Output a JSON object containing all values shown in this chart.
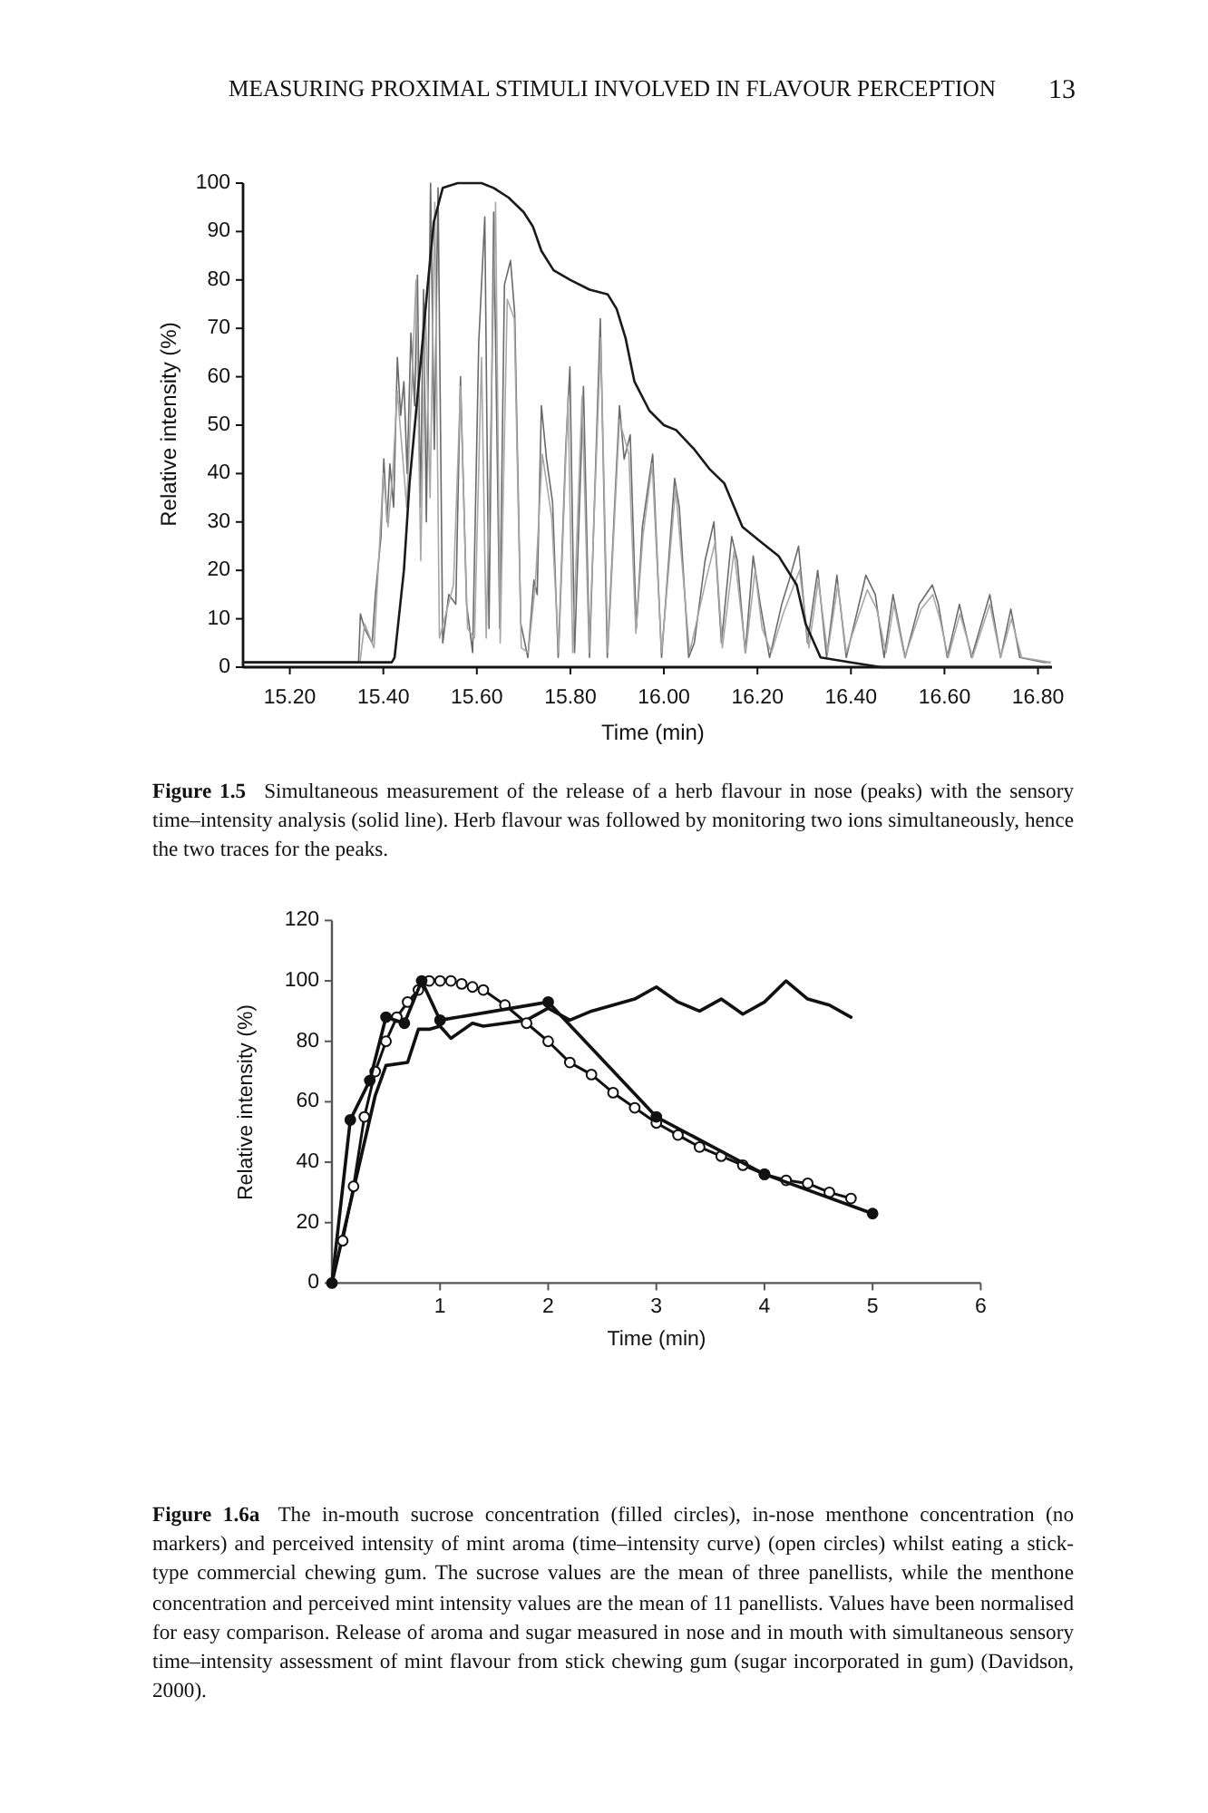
{
  "chart_data": [
    {
      "type": "line",
      "annotations": [
        "MEASURING PROXIMAL STIMULI INVOLVED IN FLAVOUR PERCEPTION",
        "13",
        "Figure 1.5 Simultaneous measurement of the release of a herb flavour in nose (peaks) with the sensory time–intensity analysis (solid line). Herb flavour was followed by monitoring two ions simultaneously, hence the two traces for the peaks."
      ],
      "xlabel": "Time (min)",
      "ylabel": "Relative intensity (%)",
      "xlim": [
        15.1,
        16.83
      ],
      "xticks": [
        {
          "value": 15.2,
          "label": "15.20"
        },
        {
          "value": 15.4,
          "label": "15.40"
        },
        {
          "value": 15.6,
          "label": "15.60"
        },
        {
          "value": 15.8,
          "label": "15.80"
        },
        {
          "value": 16.0,
          "label": "16.00"
        },
        {
          "value": 16.2,
          "label": "16.20"
        },
        {
          "value": 16.4,
          "label": "16.40"
        },
        {
          "value": 16.6,
          "label": "16.60"
        },
        {
          "value": 16.8,
          "label": "16.80"
        }
      ],
      "ylim": [
        0,
        100
      ],
      "yticks": [
        0,
        10,
        20,
        30,
        40,
        50,
        60,
        70,
        80,
        90,
        100
      ],
      "series": [
        {
          "color": "#6a6a6a",
          "x": [
            15.1,
            15.347,
            15.351,
            15.36,
            15.376,
            15.383,
            15.395,
            15.401,
            15.408,
            15.414,
            15.422,
            15.43,
            15.437,
            15.444,
            15.451,
            15.459,
            15.467,
            15.473,
            15.479,
            15.486,
            15.492,
            15.501,
            15.509,
            15.517,
            15.527,
            15.54,
            15.555,
            15.565,
            15.578,
            15.591,
            15.604,
            15.617,
            15.626,
            15.636,
            15.649,
            15.659,
            15.672,
            15.681,
            15.694,
            15.709,
            15.722,
            15.729,
            15.738,
            15.749,
            15.762,
            15.774,
            15.79,
            15.799,
            15.809,
            15.828,
            15.841,
            15.864,
            15.879,
            15.905,
            15.915,
            15.928,
            15.941,
            15.954,
            15.976,
            15.995,
            16.023,
            16.033,
            16.053,
            16.065,
            16.088,
            16.107,
            16.123,
            16.145,
            16.157,
            16.174,
            16.191,
            16.206,
            16.226,
            16.252,
            16.268,
            16.288,
            16.307,
            16.329,
            16.348,
            16.37,
            16.39,
            16.432,
            16.452,
            16.471,
            16.49,
            16.516,
            16.546,
            16.574,
            16.587,
            16.606,
            16.632,
            16.658,
            16.697,
            16.72,
            16.742,
            16.761,
            16.813,
            16.826
          ],
          "values": [
            1,
            1,
            11,
            8,
            5,
            15,
            27,
            43,
            30,
            42,
            33,
            64,
            52,
            59,
            40,
            69,
            54,
            81,
            33,
            78,
            30,
            100,
            45,
            99,
            5,
            15,
            13,
            60,
            13,
            3,
            67,
            93,
            8,
            94,
            8,
            79,
            84,
            73,
            9,
            2,
            18,
            15,
            54,
            43,
            34,
            2,
            45,
            62,
            3,
            58,
            2,
            72,
            2,
            54,
            43,
            48,
            8,
            29,
            44,
            2,
            39,
            33,
            2,
            5,
            22,
            30,
            5,
            27,
            22,
            3,
            23,
            13,
            2,
            13,
            18,
            25,
            5,
            20,
            2,
            19,
            2,
            19,
            15,
            2,
            15,
            2,
            13,
            17,
            13,
            2,
            13,
            2,
            15,
            2,
            12,
            2,
            1,
            1
          ]
        },
        {
          "color": "#a8a8a8",
          "x": [
            15.1,
            15.35,
            15.36,
            15.38,
            15.4,
            15.41,
            15.42,
            15.43,
            15.45,
            15.47,
            15.48,
            15.49,
            15.5,
            15.51,
            15.52,
            15.55,
            15.565,
            15.58,
            15.595,
            15.61,
            15.62,
            15.64,
            15.65,
            15.665,
            15.68,
            15.695,
            15.71,
            15.725,
            15.74,
            15.76,
            15.775,
            15.795,
            15.805,
            15.825,
            15.84,
            15.865,
            15.88,
            15.905,
            15.925,
            15.94,
            15.955,
            15.975,
            15.995,
            16.025,
            16.055,
            16.09,
            16.11,
            16.125,
            16.15,
            16.175,
            16.195,
            16.21,
            16.23,
            16.255,
            16.29,
            16.31,
            16.33,
            16.35,
            16.372,
            16.39,
            16.435,
            16.455,
            16.475,
            16.492,
            16.515,
            16.55,
            16.575,
            16.59,
            16.608,
            16.633,
            16.66,
            16.697,
            16.72,
            16.743,
            16.765,
            16.826
          ],
          "values": [
            1,
            1,
            9,
            4,
            40,
            29,
            40,
            57,
            33,
            80,
            22,
            75,
            35,
            96,
            6,
            17,
            58,
            8,
            6,
            64,
            6,
            96,
            5,
            76,
            72,
            4,
            3,
            17,
            44,
            31,
            3,
            56,
            3,
            56,
            3,
            68,
            3,
            51,
            44,
            7,
            27,
            42,
            3,
            37,
            3,
            18,
            26,
            4,
            24,
            3,
            20,
            8,
            3,
            11,
            20,
            4,
            18,
            3,
            17,
            3,
            16,
            12,
            3,
            13,
            2,
            12,
            15,
            10,
            2,
            11,
            2,
            13,
            2,
            10,
            2,
            1
          ]
        },
        {
          "color": "#1a1a1a",
          "x": [
            15.1,
            15.418,
            15.424,
            15.444,
            15.456,
            15.476,
            15.495,
            15.508,
            15.527,
            15.559,
            15.61,
            15.636,
            15.668,
            15.7,
            15.72,
            15.738,
            15.764,
            15.8,
            15.841,
            15.88,
            15.899,
            15.918,
            15.937,
            15.969,
            16.0,
            16.026,
            16.065,
            16.097,
            16.129,
            16.168,
            16.206,
            16.245,
            16.284,
            16.303,
            16.335,
            16.4,
            16.465,
            16.826
          ],
          "values": [
            1,
            1,
            2,
            20,
            38,
            59,
            79,
            92,
            99,
            100,
            100,
            99,
            97,
            94,
            91,
            86,
            82,
            80,
            78,
            77,
            74,
            68,
            59,
            53,
            50,
            49,
            45,
            41,
            38,
            29,
            26,
            23,
            17,
            9,
            2,
            1,
            0,
            0
          ]
        }
      ]
    },
    {
      "type": "line",
      "annotations": [
        "Figure 1.6a The in-mouth sucrose concentration (filled circles), in-nose menthone concentration (no markers) and perceived intensity of mint aroma (time–intensity curve) (open circles) whilst eating a stick-type commercial chewing gum. The sucrose values are the mean of three panellists, while the menthone concentration and perceived mint intensity values are the mean of 11 panellists. Values have been normalised for easy comparison. Release of aroma and sugar measured in nose and in mouth with simultaneous sensory time–intensity assessment of mint flavour from stick chewing gum (sugar incorporated in gum) (Davidson, 2000)."
      ],
      "xlabel": "Time (min)",
      "ylabel": "Relative intensity (%)",
      "xlim": [
        0,
        6
      ],
      "xticks": [
        1,
        2,
        3,
        4,
        5,
        6
      ],
      "ylim": [
        0,
        120
      ],
      "yticks": [
        0,
        20,
        40,
        60,
        80,
        100,
        120
      ],
      "series": [
        {
          "color": "#111111",
          "x": [
            0,
            0.4,
            0.5,
            0.7,
            0.8,
            0.9,
            1.0,
            1.1,
            1.3,
            1.4,
            1.6,
            1.8,
            2.0,
            2.2,
            2.4,
            2.6,
            2.8,
            3.0,
            3.2,
            3.4,
            3.6,
            3.8,
            4.0,
            4.2,
            4.4,
            4.6,
            4.8
          ],
          "values": [
            0,
            62,
            72,
            73,
            84,
            84,
            85,
            81,
            86,
            85,
            86,
            87,
            91,
            87,
            90,
            92,
            94,
            98,
            93,
            90,
            94,
            89,
            93,
            100,
            94,
            92,
            88
          ]
        },
        {
          "color": "#111111",
          "marker": "circle",
          "x": [
            0.1,
            0.2,
            0.3,
            0.4,
            0.5,
            0.6,
            0.7,
            0.8,
            0.9,
            1.0,
            1.1,
            1.2,
            1.3,
            1.4,
            1.6,
            1.8,
            2.0,
            2.2,
            2.4,
            2.6,
            2.8,
            3.0,
            3.2,
            3.4,
            3.6,
            3.8,
            4.0,
            4.2,
            4.4,
            4.6,
            4.8
          ],
          "values": [
            14,
            32,
            55,
            70,
            80,
            88,
            93,
            97,
            100,
            100,
            100,
            99,
            98,
            97,
            92,
            86,
            80,
            73,
            69,
            63,
            58,
            53,
            49,
            45,
            42,
            39,
            36,
            34,
            33,
            30,
            28
          ]
        },
        {
          "color": "#111111",
          "marker": "circle",
          "x": [
            0,
            0.17,
            0.35,
            0.5,
            0.67,
            0.83,
            1.0,
            2.0,
            3.0,
            4.0,
            5.0
          ],
          "values": [
            0,
            54,
            67,
            88,
            86,
            100,
            87,
            93,
            55,
            36,
            23
          ]
        }
      ]
    }
  ]
}
